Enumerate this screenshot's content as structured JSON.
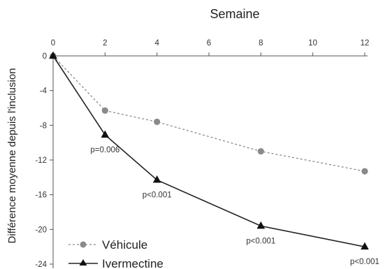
{
  "chart_data": {
    "type": "line",
    "title": "Semaine",
    "xlabel": "Semaine",
    "ylabel": "Différence moyenne depuis l'inclusion",
    "xlim": [
      0,
      12
    ],
    "ylim": [
      -24,
      0
    ],
    "xticks": [
      0,
      2,
      4,
      6,
      8,
      10,
      12
    ],
    "yticks": [
      0,
      -4,
      -8,
      -12,
      -16,
      -20,
      -24
    ],
    "grid": false,
    "legend_position": "bottom-left",
    "series": [
      {
        "name": "Véhicule",
        "style": "dashed",
        "marker": "circle",
        "color": "#8a8a8a",
        "x": [
          0,
          2,
          4,
          8,
          12
        ],
        "y": [
          0,
          -6.3,
          -7.6,
          -11.0,
          -13.3
        ]
      },
      {
        "name": "Ivermectine",
        "style": "solid",
        "marker": "triangle",
        "color": "#222222",
        "x": [
          0,
          2,
          4,
          8,
          12
        ],
        "y": [
          0,
          -9.1,
          -14.3,
          -19.6,
          -22.0
        ]
      }
    ],
    "annotations": [
      {
        "text": "p=0.006",
        "x": 2,
        "y": -9.1
      },
      {
        "text": "p<0.001",
        "x": 4,
        "y": -14.3
      },
      {
        "text": "p<0.001",
        "x": 8,
        "y": -19.6
      },
      {
        "text": "p<0.001",
        "x": 12,
        "y": -22.0
      }
    ]
  }
}
